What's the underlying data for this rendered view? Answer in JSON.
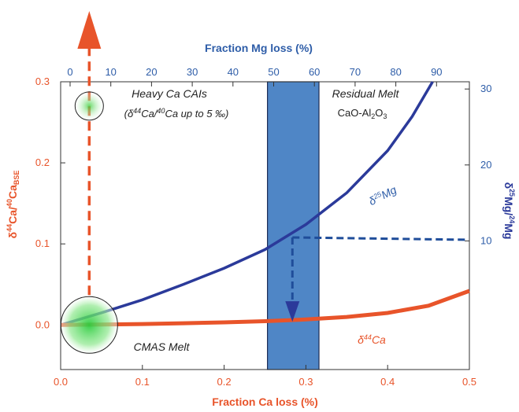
{
  "chart_data": {
    "type": "line",
    "colors": {
      "ca": "#e8542a",
      "mg": "#2b3a9a",
      "mg_axis": "#2e5da8",
      "band": "#4f86c6",
      "band_edge": "#1d2d55",
      "dash_mg": "#1f4d9a",
      "text": "#222222",
      "blob": "#3fcf3f"
    },
    "x_bottom": {
      "label": "Fraction Ca loss (%)",
      "lim": [
        0.0,
        0.5
      ],
      "ticks": [
        0.0,
        0.1,
        0.2,
        0.3,
        0.4,
        0.5
      ],
      "tick_labels": [
        "0.0",
        "0.1",
        "0.2",
        "0.3",
        "0.4",
        "0.5"
      ]
    },
    "x_top": {
      "label": "Fraction Mg loss (%)",
      "ticks": [
        0,
        10,
        20,
        30,
        40,
        50,
        60,
        70,
        80,
        90
      ],
      "tick_labels": [
        "0",
        "10",
        "20",
        "30",
        "40",
        "50",
        "60",
        "70",
        "80",
        "90"
      ]
    },
    "y_left": {
      "label_parts": {
        "d": "δ",
        "sup1": "44",
        "mid": "Ca/",
        "sup2": "40",
        "base": "Ca",
        "sub": "BSE"
      },
      "lim": [
        -0.055,
        0.3
      ],
      "ticks": [
        0.0,
        0.1,
        0.2,
        0.3
      ],
      "tick_labels": [
        "0.0",
        "0.1",
        "0.2",
        "0.3"
      ]
    },
    "y_right": {
      "label_parts": {
        "d": "δ",
        "sup1": "25",
        "mid": "Mg/",
        "sup2": "24",
        "base": "Mg"
      },
      "ticks": [
        10,
        20,
        30
      ],
      "tick_labels": [
        "10",
        "20",
        "30"
      ]
    },
    "series": [
      {
        "name": "δ44Ca",
        "x": [
          0,
          0.05,
          0.1,
          0.15,
          0.2,
          0.25,
          0.3,
          0.35,
          0.4,
          0.45,
          0.5
        ],
        "y": [
          0,
          0.0005,
          0.0012,
          0.0021,
          0.0032,
          0.0047,
          0.0068,
          0.0099,
          0.0148,
          0.0238,
          0.042
        ]
      },
      {
        "name": "δ25Mg",
        "x": [
          0,
          0.05,
          0.1,
          0.15,
          0.2,
          0.25,
          0.3,
          0.35,
          0.4,
          0.43,
          0.455
        ],
        "y": [
          0,
          0.015,
          0.031,
          0.05,
          0.07,
          0.093,
          0.124,
          0.163,
          0.215,
          0.257,
          0.3
        ]
      }
    ],
    "band_x": [
      0.253,
      0.316
    ],
    "annotations": {
      "heavy_cais_line1": "Heavy Ca CAIs",
      "heavy_cais_line2": {
        "a": "(δ",
        "sup1": "44",
        "b": "Ca/",
        "sup2": "40",
        "c": "Ca  up to 5 ‰)"
      },
      "residual_line1": "Residual Melt",
      "residual_line2": {
        "a": "CaO-Al",
        "sub1": "2",
        "b": "O",
        "sub2": "3"
      },
      "cmas": "CMAS Melt",
      "ca_curve": {
        "d": "δ",
        "sup": "44",
        "base": "Ca"
      },
      "mg_curve": {
        "d": "δ",
        "sup": "25",
        "base": "Mg"
      }
    }
  }
}
